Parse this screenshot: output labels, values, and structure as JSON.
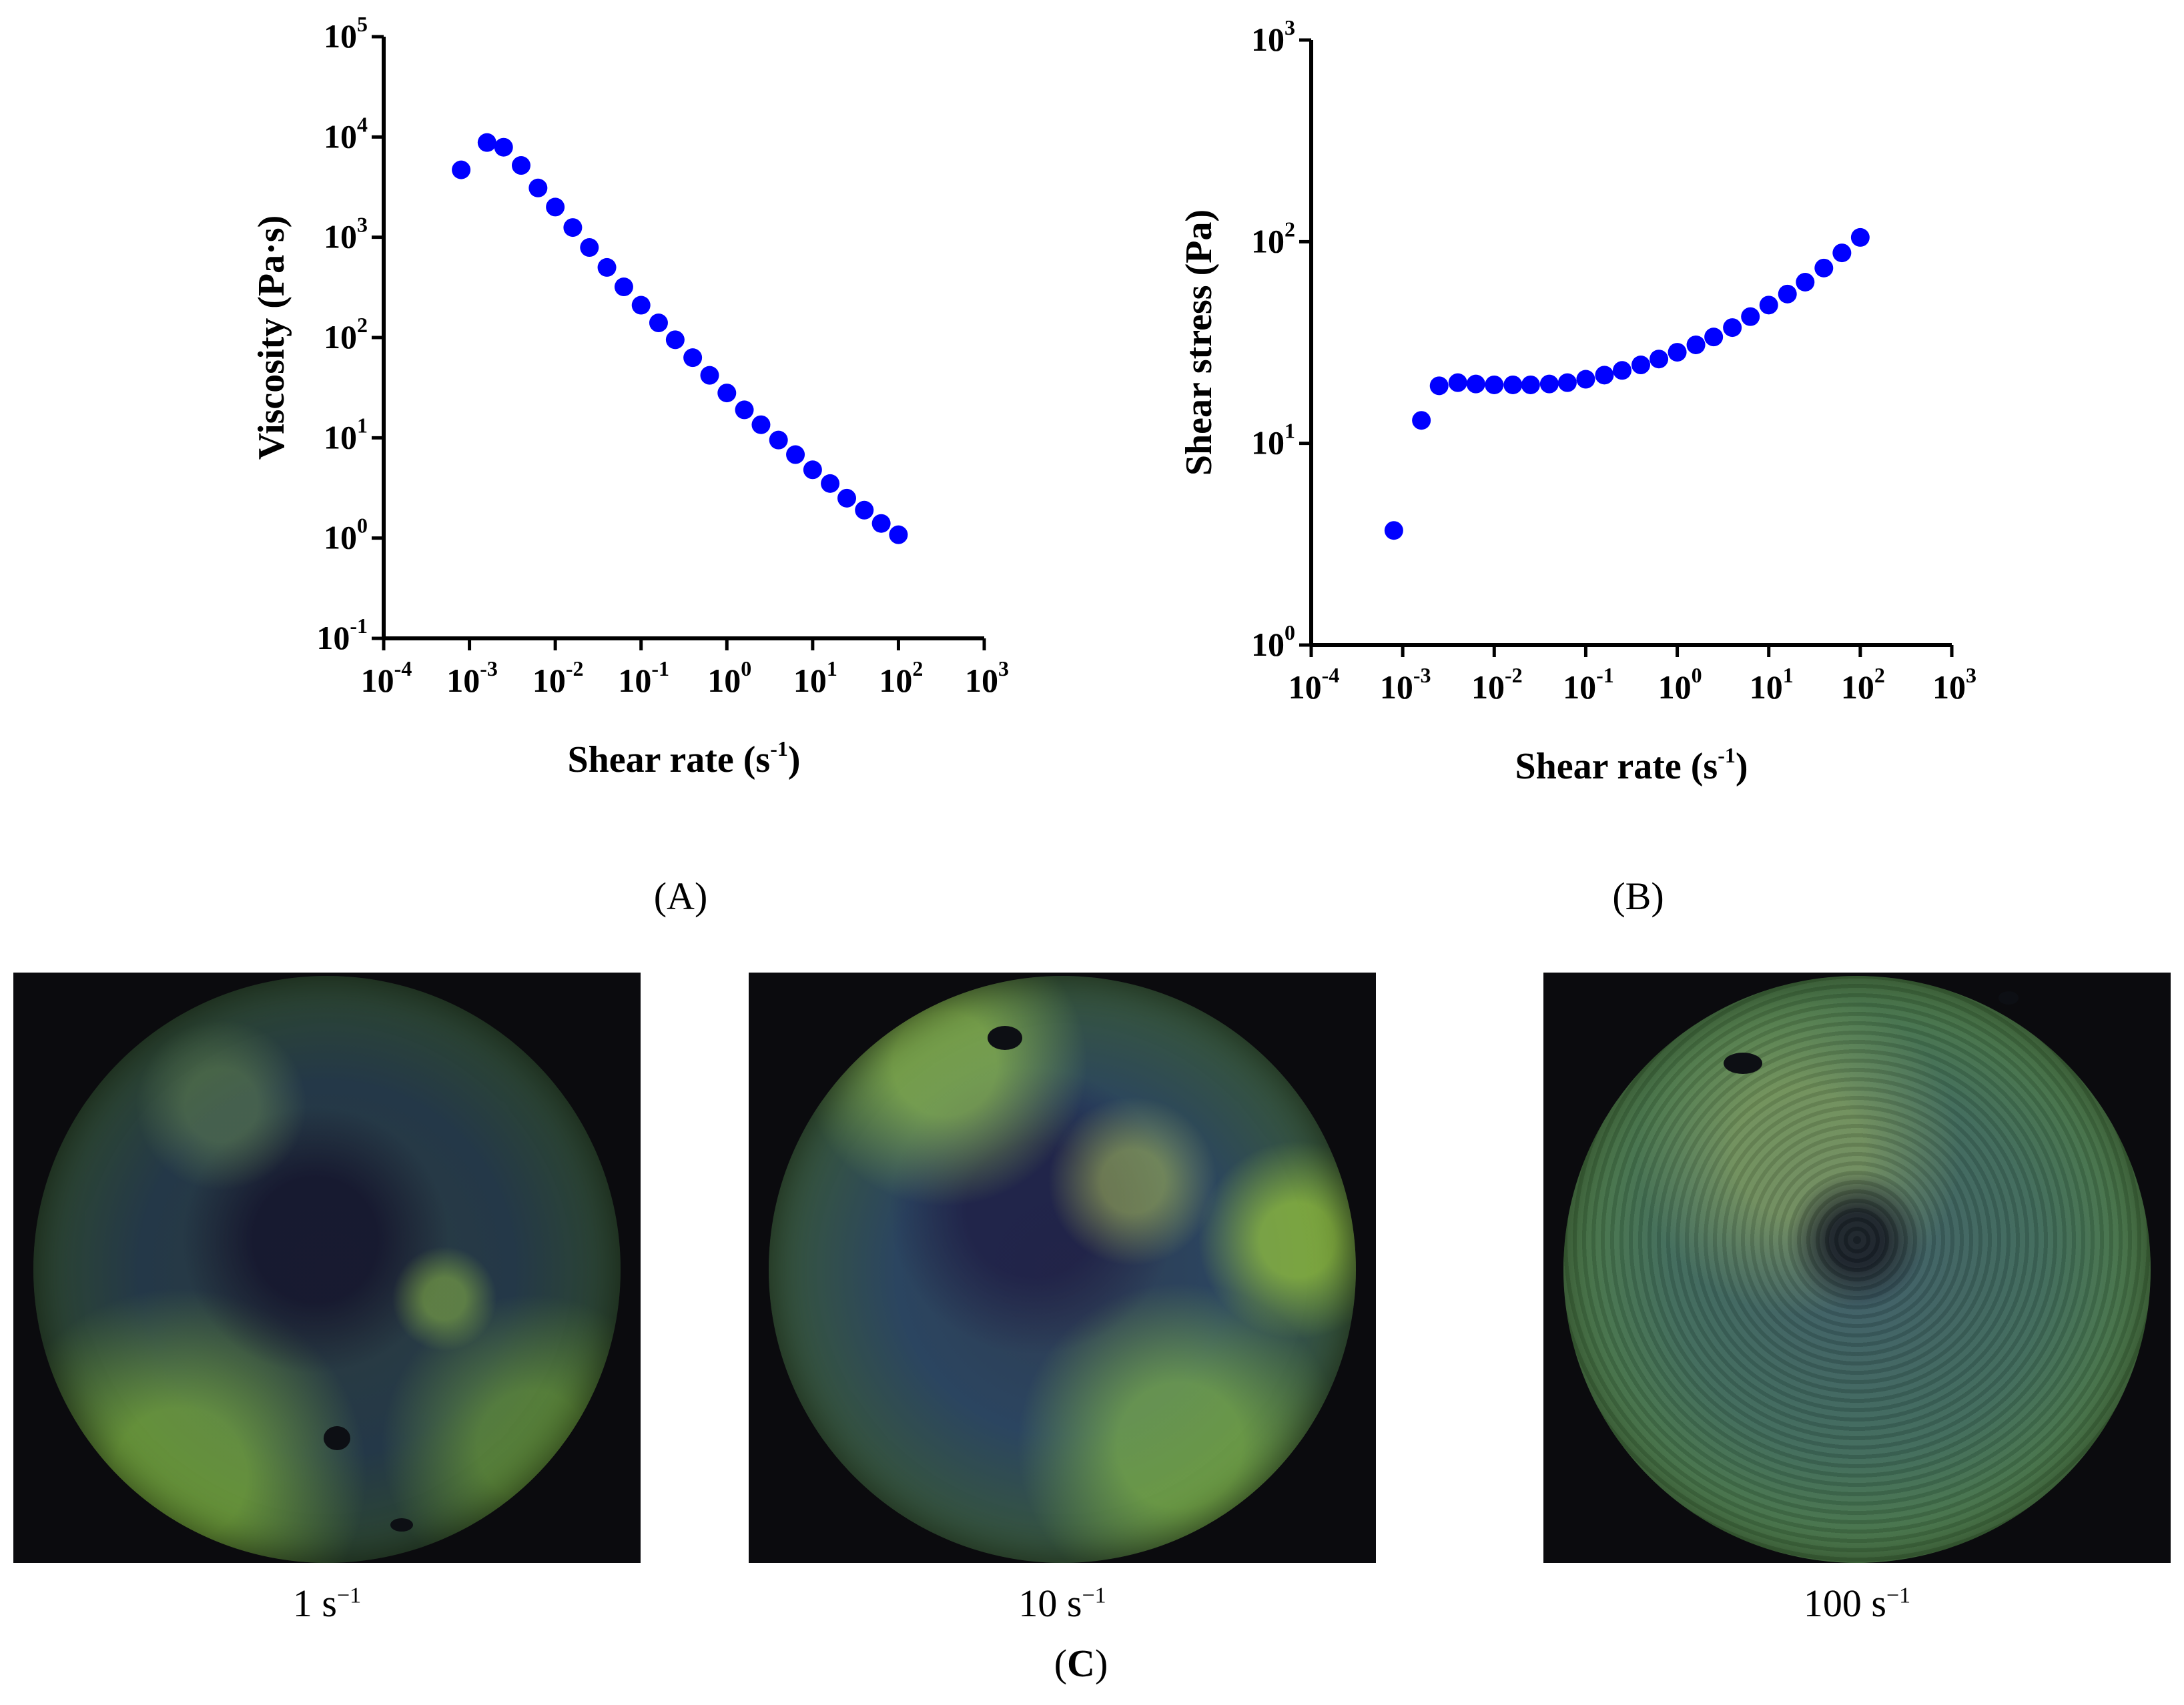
{
  "chart_data": [
    {
      "id": "A",
      "type": "scatter",
      "xlabel_main": "Shear rate (s",
      "xlabel_sup": "-1",
      "xlabel_end": ")",
      "ylabel": "Viscosity (Pa·s)",
      "xscale": "log",
      "yscale": "log",
      "xlim": [
        0.0001,
        1000
      ],
      "ylim": [
        0.1,
        100000
      ],
      "xticks": [
        {
          "base": "10",
          "exp": "-4"
        },
        {
          "base": "10",
          "exp": "-3"
        },
        {
          "base": "10",
          "exp": "-2"
        },
        {
          "base": "10",
          "exp": "-1"
        },
        {
          "base": "10",
          "exp": "0"
        },
        {
          "base": "10",
          "exp": "1"
        },
        {
          "base": "10",
          "exp": "2"
        },
        {
          "base": "10",
          "exp": "3"
        }
      ],
      "yticks": [
        {
          "base": "10",
          "exp": "-1"
        },
        {
          "base": "10",
          "exp": "0"
        },
        {
          "base": "10",
          "exp": "1"
        },
        {
          "base": "10",
          "exp": "2"
        },
        {
          "base": "10",
          "exp": "3"
        },
        {
          "base": "10",
          "exp": "4"
        },
        {
          "base": "10",
          "exp": "5"
        }
      ],
      "marker_color": "#0000ff",
      "points": [
        [
          0.0008,
          4700
        ],
        [
          0.0016,
          8800
        ],
        [
          0.0025,
          7900
        ],
        [
          0.004,
          5200
        ],
        [
          0.0063,
          3100
        ],
        [
          0.01,
          2000
        ],
        [
          0.016,
          1250
        ],
        [
          0.025,
          790
        ],
        [
          0.04,
          500
        ],
        [
          0.063,
          320
        ],
        [
          0.1,
          210
        ],
        [
          0.16,
          140
        ],
        [
          0.25,
          95
        ],
        [
          0.4,
          63
        ],
        [
          0.63,
          42
        ],
        [
          1.0,
          28
        ],
        [
          1.6,
          19
        ],
        [
          2.5,
          13.5
        ],
        [
          4.0,
          9.5
        ],
        [
          6.3,
          6.8
        ],
        [
          10,
          4.8
        ],
        [
          16,
          3.5
        ],
        [
          25,
          2.5
        ],
        [
          40,
          1.9
        ],
        [
          63,
          1.4
        ],
        [
          100,
          1.08
        ]
      ]
    },
    {
      "id": "B",
      "type": "scatter",
      "xlabel_main": "Shear rate (s",
      "xlabel_sup": "-1",
      "xlabel_end": ")",
      "ylabel": "Shear stress (Pa)",
      "xscale": "log",
      "yscale": "log",
      "xlim": [
        0.0001,
        1000
      ],
      "ylim": [
        1,
        1000
      ],
      "xticks": [
        {
          "base": "10",
          "exp": "-4"
        },
        {
          "base": "10",
          "exp": "-3"
        },
        {
          "base": "10",
          "exp": "-2"
        },
        {
          "base": "10",
          "exp": "-1"
        },
        {
          "base": "10",
          "exp": "0"
        },
        {
          "base": "10",
          "exp": "1"
        },
        {
          "base": "10",
          "exp": "2"
        },
        {
          "base": "10",
          "exp": "3"
        }
      ],
      "yticks": [
        {
          "base": "10",
          "exp": "0"
        },
        {
          "base": "10",
          "exp": "1"
        },
        {
          "base": "10",
          "exp": "2"
        },
        {
          "base": "10",
          "exp": "3"
        }
      ],
      "marker_color": "#0000ff",
      "points": [
        [
          0.0008,
          3.7
        ],
        [
          0.0016,
          13
        ],
        [
          0.0025,
          19.3
        ],
        [
          0.004,
          20
        ],
        [
          0.0063,
          19.7
        ],
        [
          0.01,
          19.5
        ],
        [
          0.016,
          19.5
        ],
        [
          0.025,
          19.5
        ],
        [
          0.04,
          19.7
        ],
        [
          0.063,
          20
        ],
        [
          0.1,
          20.8
        ],
        [
          0.16,
          21.8
        ],
        [
          0.25,
          23
        ],
        [
          0.4,
          24.5
        ],
        [
          0.63,
          26.2
        ],
        [
          1.0,
          28.3
        ],
        [
          1.6,
          30.8
        ],
        [
          2.5,
          33.7
        ],
        [
          4.0,
          37.5
        ],
        [
          6.3,
          42.5
        ],
        [
          10,
          48.5
        ],
        [
          16,
          55
        ],
        [
          25,
          63
        ],
        [
          40,
          74
        ],
        [
          63,
          88
        ],
        [
          100,
          105
        ]
      ]
    }
  ],
  "panel_labels": {
    "a": "(A)",
    "b": "(B)",
    "c_open": "(",
    "c_letter": "C",
    "c_close": ")"
  },
  "micrographs": [
    {
      "caption_num": "1 s",
      "caption_exp": "−1"
    },
    {
      "caption_num": "10 s",
      "caption_exp": "−1"
    },
    {
      "caption_num": "100 s",
      "caption_exp": "−1"
    }
  ]
}
